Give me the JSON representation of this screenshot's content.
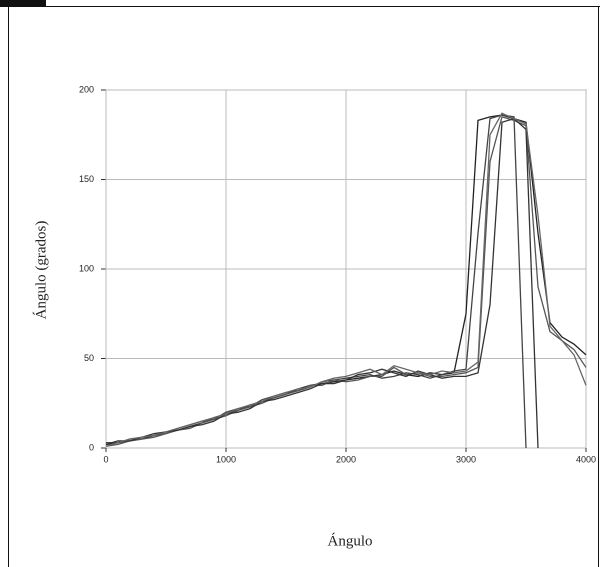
{
  "chart_data": {
    "type": "line",
    "xlabel": "Ángulo",
    "ylabel": "Ángulo (grados)",
    "x": [
      0,
      100,
      200,
      300,
      400,
      500,
      600,
      700,
      800,
      900,
      1000,
      1100,
      1200,
      1300,
      1400,
      1500,
      1600,
      1700,
      1800,
      1900,
      2000,
      2100,
      2200,
      2300,
      2400,
      2500,
      2600,
      2700,
      2800,
      2900,
      3000,
      3100,
      3200,
      3300,
      3400,
      3500,
      3600,
      3700,
      3800,
      3900,
      4000
    ],
    "series": [
      {
        "color": "#222222",
        "values": [
          2,
          3,
          4,
          5,
          7,
          9,
          10,
          12,
          14,
          17,
          19,
          21,
          24,
          26,
          28,
          30,
          33,
          35,
          36,
          37,
          38,
          39,
          40,
          41,
          43,
          41,
          40,
          42,
          41,
          42,
          75,
          183,
          185,
          186,
          184,
          182,
          120,
          70,
          62,
          58,
          52
        ]
      },
      {
        "color": "#444444",
        "values": [
          3,
          3,
          5,
          6,
          7,
          8,
          11,
          13,
          15,
          16,
          20,
          22,
          23,
          27,
          29,
          31,
          32,
          34,
          37,
          38,
          39,
          40,
          41,
          39,
          40,
          42,
          41,
          39,
          41,
          43,
          44,
          120,
          184,
          186,
          185,
          0,
          null,
          null,
          null,
          null,
          null
        ]
      },
      {
        "color": "#555555",
        "values": [
          1,
          2,
          4,
          5,
          6,
          8,
          10,
          11,
          14,
          16,
          18,
          21,
          23,
          25,
          28,
          30,
          32,
          35,
          35,
          38,
          37,
          38,
          40,
          40,
          45,
          41,
          42,
          40,
          40,
          41,
          42,
          45,
          160,
          185,
          183,
          180,
          90,
          65,
          60,
          55,
          45
        ]
      },
      {
        "color": "#333333",
        "values": [
          2,
          4,
          4,
          6,
          8,
          9,
          10,
          12,
          13,
          15,
          19,
          20,
          22,
          26,
          27,
          29,
          31,
          33,
          36,
          36,
          38,
          41,
          42,
          44,
          42,
          40,
          43,
          41,
          39,
          40,
          40,
          42,
          80,
          182,
          184,
          178,
          0,
          null,
          null,
          null,
          null
        ]
      },
      {
        "color": "#666666",
        "values": [
          1,
          3,
          5,
          6,
          7,
          9,
          11,
          13,
          15,
          17,
          19,
          22,
          24,
          26,
          29,
          31,
          33,
          34,
          37,
          39,
          40,
          42,
          44,
          41,
          46,
          44,
          42,
          41,
          43,
          42,
          43,
          48,
          175,
          187,
          184,
          181,
          130,
          68,
          60,
          52,
          35
        ]
      }
    ],
    "xlim": [
      0,
      4000
    ],
    "xticks": [
      0,
      1000,
      2000,
      3000,
      4000
    ],
    "ylim": [
      0,
      200
    ],
    "yticks": [
      0,
      50,
      100,
      150,
      200
    ],
    "grid": true
  }
}
